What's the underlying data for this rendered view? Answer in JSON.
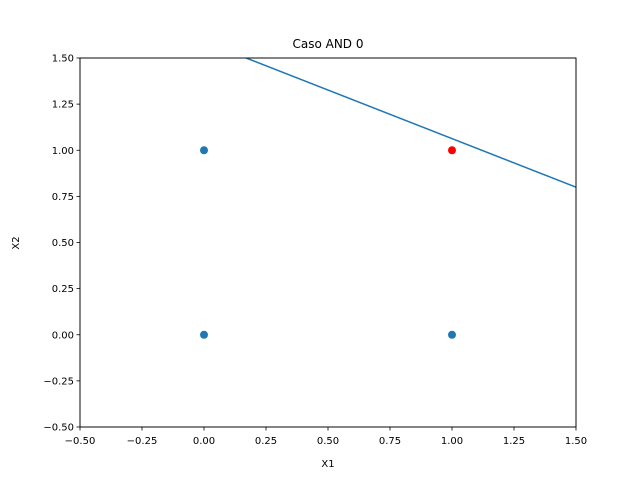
{
  "chart_data": {
    "type": "scatter",
    "title": "Caso AND 0",
    "xlabel": "X1",
    "ylabel": "X2",
    "xlim": [
      -0.5,
      1.5
    ],
    "ylim": [
      -0.5,
      1.5
    ],
    "xticks": [
      "−0.50",
      "−0.25",
      "0.00",
      "0.25",
      "0.50",
      "0.75",
      "1.00",
      "1.25",
      "1.50"
    ],
    "yticks": [
      "−0.50",
      "−0.25",
      "0.00",
      "0.25",
      "0.50",
      "0.75",
      "1.00",
      "1.25",
      "1.50"
    ],
    "xtick_values": [
      -0.5,
      -0.25,
      0,
      0.25,
      0.5,
      0.75,
      1,
      1.25,
      1.5
    ],
    "ytick_values": [
      -0.5,
      -0.25,
      0,
      0.25,
      0.5,
      0.75,
      1,
      1.25,
      1.5
    ],
    "grid": false,
    "points": [
      {
        "x": 0,
        "y": 0,
        "color": "#1f77b4"
      },
      {
        "x": 0,
        "y": 1,
        "color": "#1f77b4"
      },
      {
        "x": 1,
        "y": 0,
        "color": "#1f77b4"
      },
      {
        "x": 1,
        "y": 1,
        "color": "#ff0000"
      }
    ],
    "line": {
      "x": [
        0.17,
        1.5
      ],
      "y": [
        1.5,
        0.8
      ],
      "color": "#1f77b4"
    }
  }
}
